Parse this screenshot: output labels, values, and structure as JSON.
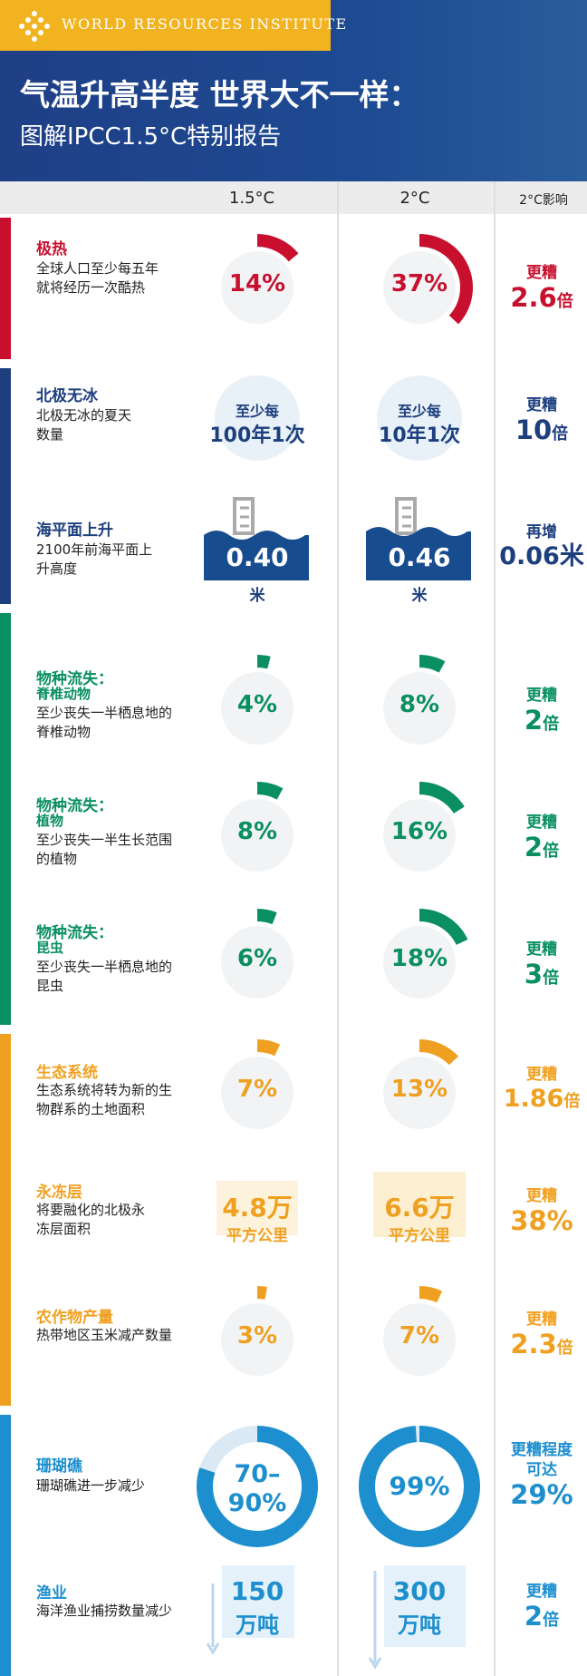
{
  "header": {
    "org_name": "WORLD RESOURCES INSTITUTE",
    "title": "气温升高半度 世界大不一样：",
    "subtitle": "图解IPCC1.5°C特别报告"
  },
  "columns": {
    "c1": "1.5°C",
    "c2": "2°C",
    "c3": "2°C影响"
  },
  "colors": {
    "red": "#c8102e",
    "navy": "#1d3f7e",
    "green": "#0a8f62",
    "orange": "#f0a020",
    "blue": "#1d8fce"
  },
  "rows": [
    {
      "title": "极热",
      "desc": "全球人口至少每五年就将经历一次酷热",
      "v1": "14%",
      "v2": "37%",
      "p1": 14,
      "p2": 37,
      "imp1": "更糟",
      "imp2": "2.6",
      "imp_unit": "倍"
    },
    {
      "title": "北极无冰",
      "desc": "北极无冰的夏天数量",
      "v1_top": "至少每",
      "v1": "100年1次",
      "v2_top": "至少每",
      "v2": "10年1次",
      "imp1": "更糟",
      "imp2": "10",
      "imp_unit": "倍"
    },
    {
      "title": "海平面上升",
      "desc": "2100年前海平面上升高度",
      "v1": "0.40",
      "v1_unit": "米",
      "v2": "0.46",
      "v2_unit": "米",
      "imp1": "再增",
      "imp2": "0.06",
      "imp_unit": "米"
    },
    {
      "title": "物种流失：",
      "subtitle": "脊椎动物",
      "desc": "至少丧失一半栖息地的脊椎动物",
      "v1": "4%",
      "v2": "8%",
      "p1": 4,
      "p2": 8,
      "imp1": "更糟",
      "imp2": "2",
      "imp_unit": "倍"
    },
    {
      "title": "物种流失：",
      "subtitle": "植物",
      "desc": "至少丧失一半生长范围的植物",
      "v1": "8%",
      "v2": "16%",
      "p1": 8,
      "p2": 16,
      "imp1": "更糟",
      "imp2": "2",
      "imp_unit": "倍"
    },
    {
      "title": "物种流失：",
      "subtitle": "昆虫",
      "desc": "至少丧失一半栖息地的昆虫",
      "v1": "6%",
      "v2": "18%",
      "p1": 6,
      "p2": 18,
      "imp1": "更糟",
      "imp2": "3",
      "imp_unit": "倍"
    },
    {
      "title": "生态系统",
      "desc": "生态系统将转为新的生物群系的土地面积",
      "v1": "7%",
      "v2": "13%",
      "p1": 7,
      "p2": 13,
      "imp1": "更糟",
      "imp2": "1.86",
      "imp_unit": "倍"
    },
    {
      "title": "永冻层",
      "desc": "将要融化的北极永冻层面积",
      "v1": "4.8万",
      "v1_unit": "平方公里",
      "v2": "6.6万",
      "v2_unit": "平方公里",
      "imp1": "更糟",
      "imp2": "38%",
      "imp_unit": ""
    },
    {
      "title": "农作物产量",
      "desc": "热带地区玉米减产数量",
      "v1": "3%",
      "v2": "7%",
      "p1": 3,
      "p2": 7,
      "imp1": "更糟",
      "imp2": "2.3",
      "imp_unit": "倍"
    },
    {
      "title": "珊瑚礁",
      "desc": "珊瑚礁进一步减少",
      "v1": "70–90%",
      "v1a": "70–",
      "v1b": "90%",
      "v2": "99%",
      "p1": 80,
      "p2": 99,
      "imp1": "更糟程度",
      "imp1b": "可达",
      "imp2": "29%",
      "imp_unit": ""
    },
    {
      "title": "渔业",
      "desc": "海洋渔业捕捞数量减少",
      "v1": "150",
      "v1_unit": "万吨",
      "v2": "300",
      "v2_unit": "万吨",
      "imp1": "更糟",
      "imp2": "2",
      "imp_unit": "倍"
    }
  ]
}
